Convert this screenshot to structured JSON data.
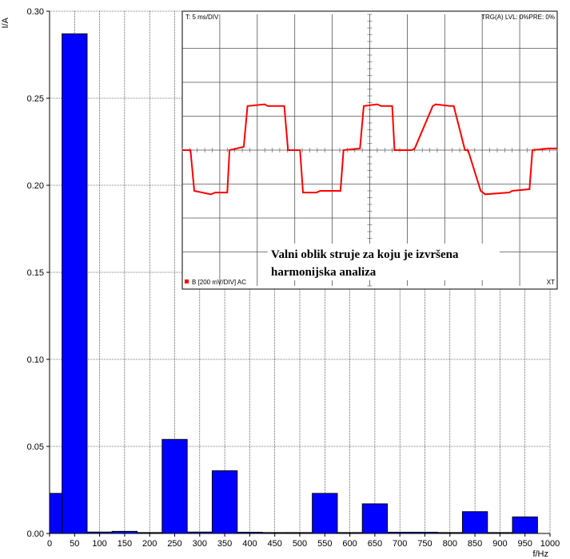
{
  "chart_data": [
    {
      "type": "bar",
      "xlabel": "f/Hz",
      "ylabel": "I/A",
      "xlim": [
        0,
        1000
      ],
      "ylim": [
        0,
        0.3
      ],
      "grid": true,
      "bar_color": "#0000ff",
      "x_ticks": [
        0,
        50,
        100,
        150,
        200,
        250,
        300,
        350,
        400,
        450,
        500,
        550,
        600,
        650,
        700,
        750,
        800,
        850,
        900,
        950,
        1000
      ],
      "x_tick_labels": [
        "0",
        "50",
        "100",
        "150",
        "200",
        "250",
        "300",
        "350",
        "400",
        "450",
        "500",
        "550",
        "600",
        "650",
        "700",
        "750",
        "800",
        "850",
        "900",
        "950",
        "1000"
      ],
      "y_ticks": [
        0,
        0.05,
        0.1,
        0.15,
        0.2,
        0.25,
        0.3
      ],
      "y_tick_labels": [
        "0.00",
        "0.05",
        "0.10",
        "0.15",
        "0.20",
        "0.25",
        "0.30"
      ],
      "bars": [
        {
          "x": 0,
          "value": 0.023
        },
        {
          "x": 50,
          "value": 0.287
        },
        {
          "x": 100,
          "value": 0.0008
        },
        {
          "x": 150,
          "value": 0.0012
        },
        {
          "x": 200,
          "value": 0.0005
        },
        {
          "x": 250,
          "value": 0.054
        },
        {
          "x": 300,
          "value": 0.0008
        },
        {
          "x": 350,
          "value": 0.036
        },
        {
          "x": 400,
          "value": 0.0007
        },
        {
          "x": 450,
          "value": 0.0005
        },
        {
          "x": 500,
          "value": 0.0005
        },
        {
          "x": 550,
          "value": 0.023
        },
        {
          "x": 600,
          "value": 0.0005
        },
        {
          "x": 650,
          "value": 0.017
        },
        {
          "x": 700,
          "value": 0.0007
        },
        {
          "x": 750,
          "value": 0.0007
        },
        {
          "x": 800,
          "value": 0.0005
        },
        {
          "x": 850,
          "value": 0.0125
        },
        {
          "x": 900,
          "value": 0.0005
        },
        {
          "x": 950,
          "value": 0.0095
        }
      ]
    },
    {
      "type": "line",
      "scope_label": "T: 5 ms/DIV",
      "trigger_label": "TRG(A) LVL: 0%PRE: 0%",
      "channel_label": "B [200 mV/DIV] AC",
      "mode_label": "XT",
      "caption_line1": "Valni oblik struje za koju je izvršena",
      "caption_line2": "harmonijska analiza",
      "line_color": "#ff0000",
      "channel_color": "#ff0000",
      "x_unit": "ms",
      "y_unit": "div",
      "xlim": [
        0,
        50
      ],
      "ylim": [
        -4,
        4
      ],
      "x": [
        0,
        1.1,
        1.6,
        3.8,
        4.4,
        6.0,
        6.3,
        8.2,
        8.7,
        11.0,
        11.4,
        13.6,
        14.1,
        15.7,
        16.1,
        17.9,
        18.4,
        21.1,
        21.5,
        23.7,
        24.2,
        26.0,
        26.5,
        28.0,
        28.3,
        30.6,
        31.0,
        33.4,
        33.8,
        35.7,
        36.2,
        37.7,
        38.1,
        39.8,
        40.4,
        43.6,
        44.0,
        46.3,
        46.7,
        48.8,
        49.1,
        50.0
      ],
      "y": [
        0,
        0,
        -1.2,
        -1.3,
        -1.25,
        -1.25,
        0,
        0.1,
        1.3,
        1.35,
        1.3,
        1.3,
        0,
        0,
        -1.25,
        -1.25,
        -1.2,
        -1.2,
        0,
        0.05,
        1.3,
        1.35,
        1.3,
        1.3,
        0,
        0,
        0.05,
        1.3,
        1.35,
        1.3,
        1.3,
        0,
        0,
        -1.2,
        -1.3,
        -1.25,
        -1.2,
        -1.15,
        0,
        0.05,
        0.05,
        0.05
      ]
    }
  ]
}
